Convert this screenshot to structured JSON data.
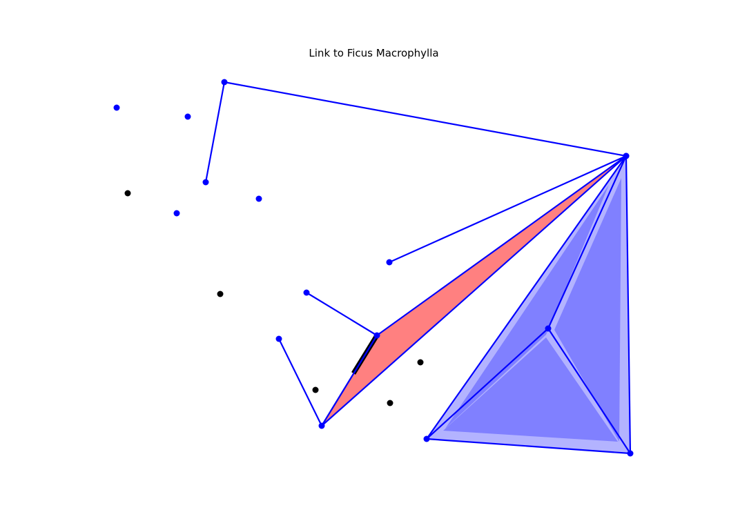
{
  "title": "Link to Ficus Macrophylla",
  "colors": {
    "background": "#ffffff",
    "blue": "#0000ff",
    "red_fill": "#ff8080",
    "blue_fill": "#8080ff",
    "blue_halo": "#b3b3ff",
    "black": "#000000"
  },
  "points": {
    "p1": "blue",
    "p2": "blue",
    "p3": "blue",
    "p4": "blue",
    "p5": "blue",
    "p6": "blue",
    "p7": "blue",
    "p8": "blue",
    "p9": "blue",
    "p10": "blue",
    "p11": "blue",
    "p12": "blue",
    "p13": "blue",
    "p14": "blue",
    "p15": "blue",
    "p16": "blue",
    "b1": "black",
    "b2": "black",
    "b3": "black",
    "b4": "black",
    "b5": "black"
  },
  "edges": [
    [
      "p3",
      "p4"
    ],
    [
      "p3",
      "p5"
    ],
    [
      "p5",
      "p7"
    ],
    [
      "p7",
      "p10"
    ],
    [
      "p7",
      "p11"
    ],
    [
      "p7",
      "p12"
    ],
    [
      "p9",
      "p11"
    ],
    [
      "p11",
      "p12"
    ],
    [
      "p12",
      "p13"
    ],
    [
      "p7",
      "p14"
    ],
    [
      "p7",
      "p16"
    ],
    [
      "p14",
      "p15"
    ],
    [
      "p14",
      "p16"
    ],
    [
      "p15",
      "p16"
    ]
  ]
}
